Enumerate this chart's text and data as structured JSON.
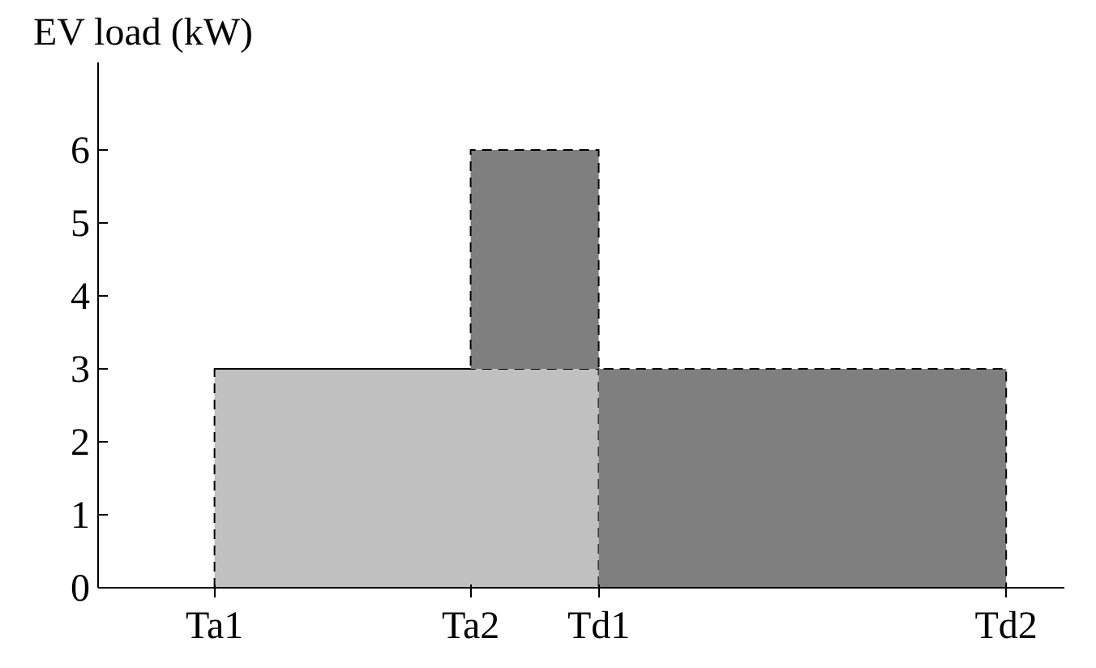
{
  "chart_data": {
    "type": "area",
    "stacked": true,
    "ylabel": "EV load (kW)",
    "categories": [
      "Ta1",
      "Ta2",
      "Td1",
      "Td2"
    ],
    "series": [
      {
        "color": "#c0c0c0",
        "values": [
          3,
          3,
          0,
          0
        ]
      },
      {
        "color": "#7f7f7f",
        "values": [
          0,
          3,
          3,
          0
        ]
      }
    ],
    "ylim": [
      0,
      7.2
    ],
    "yticks": [
      0,
      1,
      2,
      3,
      4,
      5,
      6
    ],
    "grid": false,
    "line_style": "dashed"
  }
}
